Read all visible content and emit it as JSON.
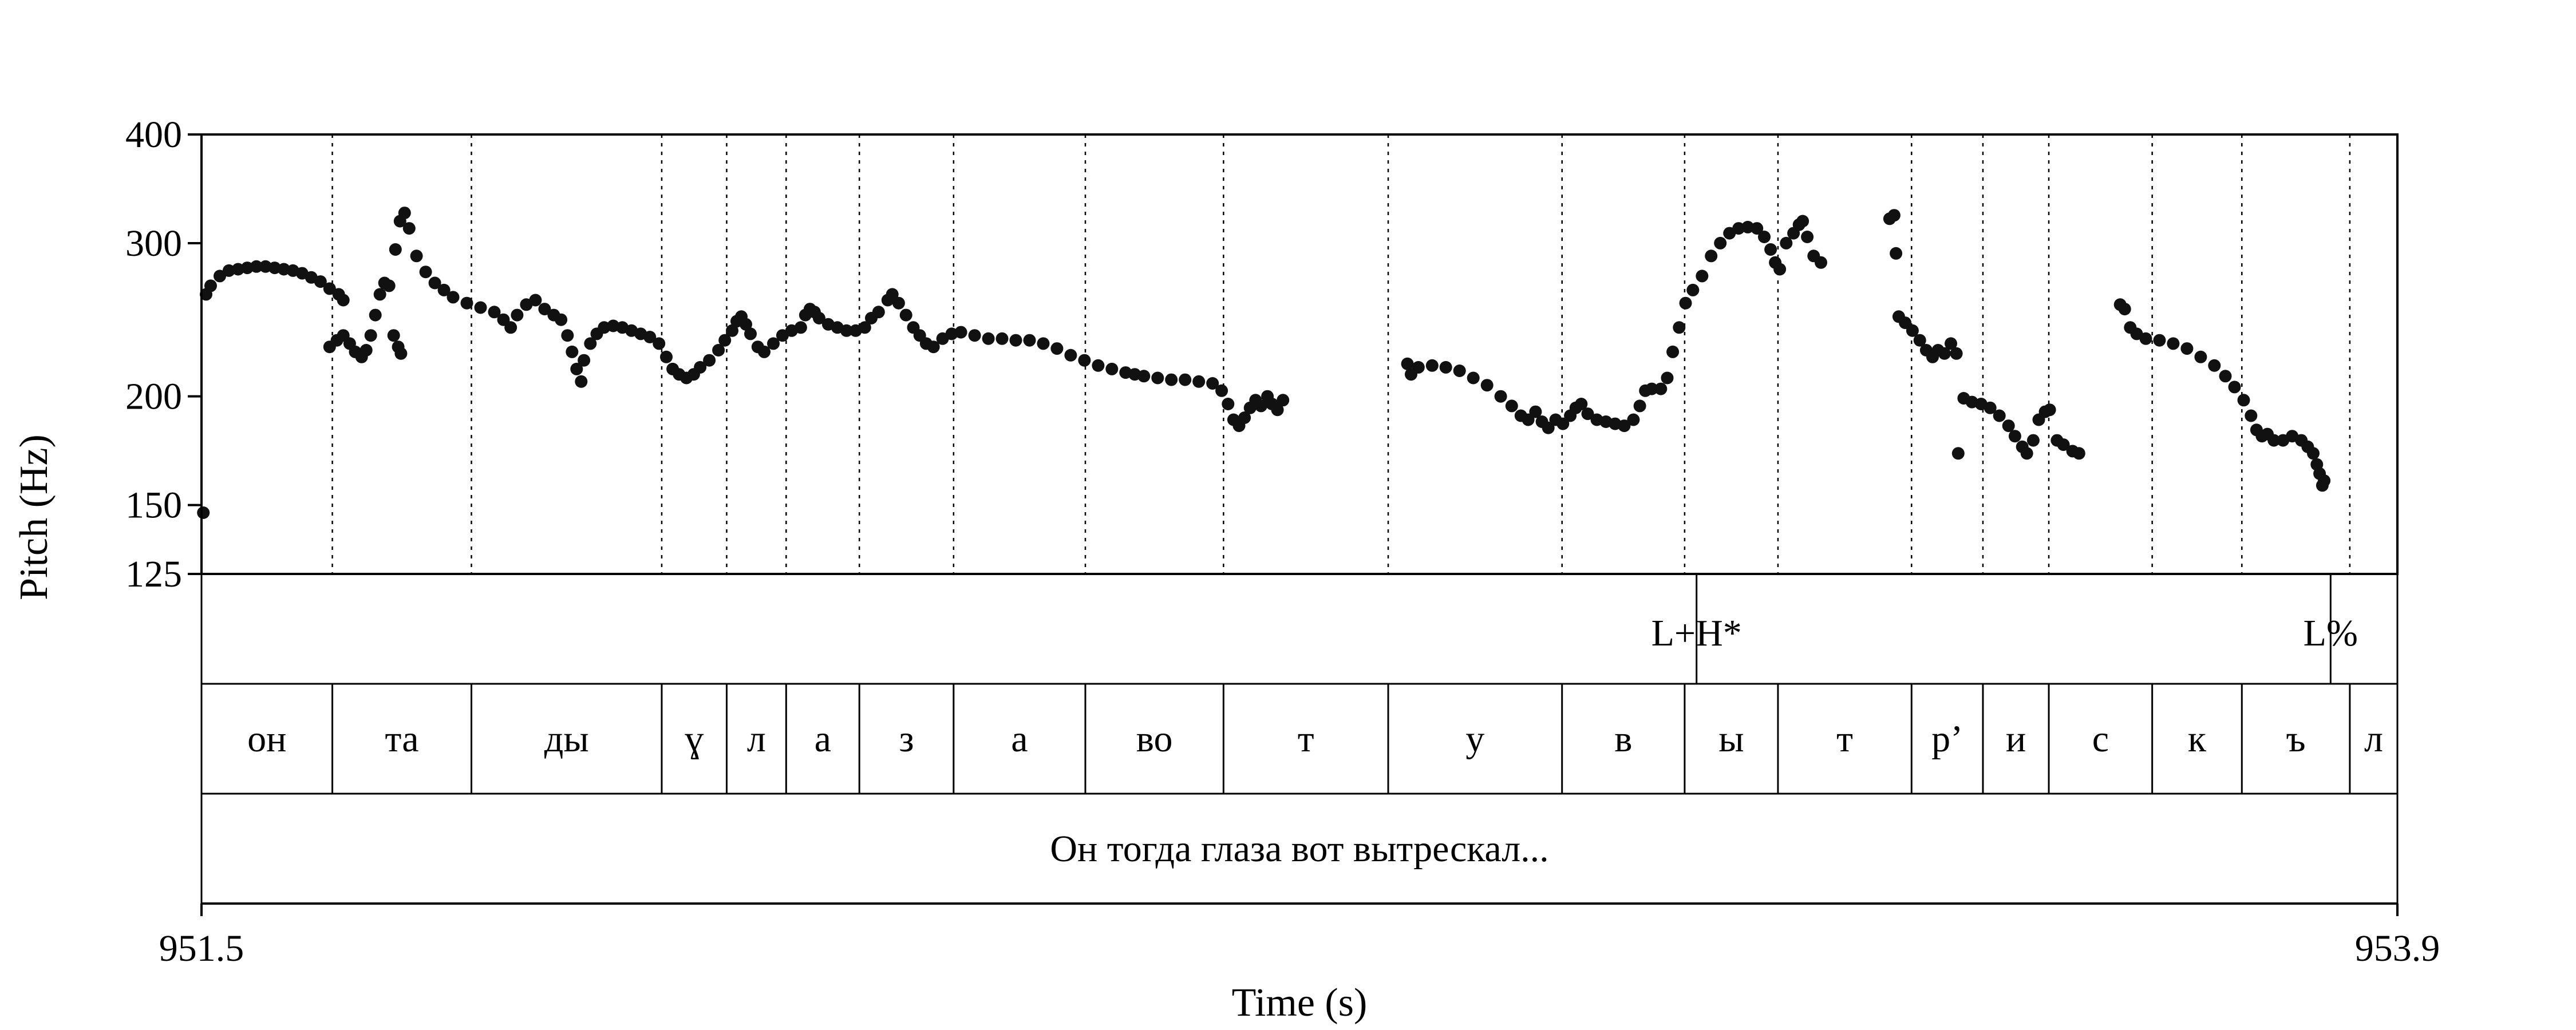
{
  "chart_data": {
    "type": "scatter",
    "title": "",
    "xlabel": "Time (s)",
    "ylabel": "Pitch (Hz)",
    "xlim": [
      951.5,
      953.9
    ],
    "ylim": [
      125,
      400
    ],
    "y_scale": "log",
    "x_tick_labels": [
      "951.5",
      "953.9"
    ],
    "y_tick_labels": [
      "125",
      "150",
      "200",
      "300",
      "400"
    ],
    "y_ticks": [
      125,
      150,
      200,
      300,
      400
    ],
    "grid": false,
    "series": [
      {
        "points": [
          [
            951.502,
            147
          ],
          [
            951.505,
            262
          ],
          [
            951.51,
            268
          ],
          [
            951.52,
            275
          ],
          [
            951.53,
            279
          ],
          [
            951.54,
            280
          ],
          [
            951.55,
            281
          ],
          [
            951.56,
            282
          ],
          [
            951.57,
            282
          ],
          [
            951.58,
            281
          ],
          [
            951.59,
            280
          ],
          [
            951.6,
            279
          ],
          [
            951.61,
            277
          ],
          [
            951.62,
            274
          ],
          [
            951.63,
            271
          ],
          [
            951.64,
            266
          ],
          [
            951.65,
            262
          ],
          [
            951.655,
            258
          ],
          [
            951.64,
            228
          ],
          [
            951.648,
            232
          ],
          [
            951.655,
            235
          ],
          [
            951.662,
            230
          ],
          [
            951.668,
            225
          ],
          [
            951.675,
            222
          ],
          [
            951.68,
            226
          ],
          [
            951.685,
            235
          ],
          [
            951.69,
            248
          ],
          [
            951.695,
            262
          ],
          [
            951.7,
            270
          ],
          [
            951.705,
            268
          ],
          [
            951.71,
            235
          ],
          [
            951.715,
            228
          ],
          [
            951.718,
            224
          ],
          [
            951.712,
            295
          ],
          [
            951.717,
            318
          ],
          [
            951.722,
            325
          ],
          [
            951.727,
            312
          ],
          [
            951.735,
            290
          ],
          [
            951.745,
            278
          ],
          [
            951.755,
            270
          ],
          [
            951.765,
            265
          ],
          [
            951.775,
            260
          ],
          [
            951.79,
            256
          ],
          [
            951.805,
            253
          ],
          [
            951.82,
            250
          ],
          [
            951.83,
            245
          ],
          [
            951.838,
            240
          ],
          [
            951.845,
            248
          ],
          [
            951.855,
            255
          ],
          [
            951.865,
            258
          ],
          [
            951.875,
            252
          ],
          [
            951.885,
            248
          ],
          [
            951.893,
            245
          ],
          [
            951.9,
            235
          ],
          [
            951.905,
            225
          ],
          [
            951.91,
            215
          ],
          [
            951.915,
            208
          ],
          [
            951.918,
            220
          ],
          [
            951.925,
            230
          ],
          [
            951.932,
            236
          ],
          [
            951.94,
            240
          ],
          [
            951.95,
            241
          ],
          [
            951.96,
            240
          ],
          [
            951.97,
            238
          ],
          [
            951.98,
            236
          ],
          [
            951.99,
            234
          ],
          [
            952.0,
            230
          ],
          [
            952.008,
            222
          ],
          [
            952.015,
            215
          ],
          [
            952.022,
            212
          ],
          [
            952.03,
            210
          ],
          [
            952.038,
            212
          ],
          [
            952.045,
            216
          ],
          [
            952.055,
            220
          ],
          [
            952.065,
            226
          ],
          [
            952.072,
            232
          ],
          [
            952.08,
            238
          ],
          [
            952.085,
            244
          ],
          [
            952.09,
            247
          ],
          [
            952.095,
            242
          ],
          [
            952.1,
            236
          ],
          [
            952.108,
            228
          ],
          [
            952.115,
            225
          ],
          [
            952.125,
            230
          ],
          [
            952.135,
            235
          ],
          [
            952.145,
            238
          ],
          [
            952.155,
            240
          ],
          [
            952.16,
            248
          ],
          [
            952.165,
            252
          ],
          [
            952.17,
            250
          ],
          [
            952.175,
            246
          ],
          [
            952.185,
            242
          ],
          [
            952.195,
            240
          ],
          [
            952.205,
            238
          ],
          [
            952.215,
            238
          ],
          [
            952.225,
            240
          ],
          [
            952.232,
            246
          ],
          [
            952.24,
            250
          ],
          [
            952.25,
            258
          ],
          [
            952.255,
            262
          ],
          [
            952.262,
            256
          ],
          [
            952.27,
            248
          ],
          [
            952.278,
            240
          ],
          [
            952.285,
            235
          ],
          [
            952.292,
            230
          ],
          [
            952.3,
            228
          ],
          [
            952.31,
            233
          ],
          [
            952.32,
            236
          ],
          [
            952.33,
            237
          ],
          [
            952.345,
            235
          ],
          [
            952.36,
            233
          ],
          [
            952.375,
            233
          ],
          [
            952.39,
            232
          ],
          [
            952.405,
            232
          ],
          [
            952.42,
            230
          ],
          [
            952.435,
            227
          ],
          [
            952.45,
            223
          ],
          [
            952.465,
            220
          ],
          [
            952.48,
            217
          ],
          [
            952.495,
            215
          ],
          [
            952.51,
            213
          ],
          [
            952.52,
            212
          ],
          [
            952.53,
            211
          ],
          [
            952.545,
            210
          ],
          [
            952.56,
            209
          ],
          [
            952.575,
            209
          ],
          [
            952.59,
            208
          ],
          [
            952.605,
            207
          ],
          [
            952.615,
            203
          ],
          [
            952.622,
            196
          ],
          [
            952.628,
            188
          ],
          [
            952.634,
            185
          ],
          [
            952.64,
            189
          ],
          [
            952.646,
            194
          ],
          [
            952.652,
            198
          ],
          [
            952.658,
            195
          ],
          [
            952.665,
            200
          ],
          [
            952.67,
            196
          ],
          [
            952.676,
            193
          ],
          [
            952.682,
            198
          ],
          [
            952.818,
            218
          ],
          [
            952.822,
            212
          ],
          [
            952.83,
            216
          ],
          [
            952.845,
            217
          ],
          [
            952.86,
            216
          ],
          [
            952.875,
            214
          ],
          [
            952.89,
            210
          ],
          [
            952.905,
            206
          ],
          [
            952.92,
            200
          ],
          [
            952.932,
            195
          ],
          [
            952.942,
            190
          ],
          [
            952.95,
            188
          ],
          [
            952.958,
            192
          ],
          [
            952.965,
            187
          ],
          [
            952.972,
            184
          ],
          [
            952.98,
            188
          ],
          [
            952.988,
            186
          ],
          [
            952.996,
            190
          ],
          [
            953.002,
            194
          ],
          [
            953.008,
            196
          ],
          [
            953.015,
            191
          ],
          [
            953.025,
            188
          ],
          [
            953.035,
            187
          ],
          [
            953.045,
            186
          ],
          [
            953.055,
            185
          ],
          [
            953.065,
            188
          ],
          [
            953.072,
            195
          ],
          [
            953.078,
            203
          ],
          [
            953.085,
            204
          ],
          [
            953.095,
            204
          ],
          [
            953.102,
            210
          ],
          [
            953.108,
            225
          ],
          [
            953.115,
            240
          ],
          [
            953.122,
            256
          ],
          [
            953.13,
            265
          ],
          [
            953.14,
            275
          ],
          [
            953.15,
            290
          ],
          [
            953.16,
            300
          ],
          [
            953.17,
            308
          ],
          [
            953.18,
            312
          ],
          [
            953.19,
            313
          ],
          [
            953.2,
            312
          ],
          [
            953.208,
            305
          ],
          [
            953.215,
            295
          ],
          [
            953.22,
            285
          ],
          [
            953.225,
            280
          ],
          [
            953.232,
            300
          ],
          [
            953.24,
            308
          ],
          [
            953.246,
            315
          ],
          [
            953.25,
            318
          ],
          [
            953.255,
            305
          ],
          [
            953.262,
            290
          ],
          [
            953.27,
            285
          ],
          [
            953.345,
            320
          ],
          [
            953.35,
            323
          ],
          [
            953.352,
            292
          ],
          [
            953.355,
            247
          ],
          [
            953.362,
            243
          ],
          [
            953.37,
            238
          ],
          [
            953.378,
            232
          ],
          [
            953.385,
            226
          ],
          [
            953.392,
            222
          ],
          [
            953.398,
            226
          ],
          [
            953.405,
            224
          ],
          [
            953.412,
            230
          ],
          [
            953.418,
            224
          ],
          [
            953.42,
            172
          ],
          [
            953.426,
            199
          ],
          [
            953.435,
            197
          ],
          [
            953.445,
            196
          ],
          [
            953.455,
            194
          ],
          [
            953.465,
            190
          ],
          [
            953.475,
            185
          ],
          [
            953.482,
            180
          ],
          [
            953.49,
            175
          ],
          [
            953.495,
            172
          ],
          [
            953.502,
            178
          ],
          [
            953.508,
            188
          ],
          [
            953.515,
            192
          ],
          [
            953.52,
            193
          ],
          [
            953.528,
            178
          ],
          [
            953.535,
            176
          ],
          [
            953.545,
            173
          ],
          [
            953.552,
            172
          ],
          [
            953.597,
            255
          ],
          [
            953.602,
            252
          ],
          [
            953.608,
            240
          ],
          [
            953.615,
            236
          ],
          [
            953.625,
            233
          ],
          [
            953.64,
            232
          ],
          [
            953.655,
            230
          ],
          [
            953.67,
            227
          ],
          [
            953.685,
            222
          ],
          [
            953.7,
            217
          ],
          [
            953.712,
            211
          ],
          [
            953.722,
            205
          ],
          [
            953.732,
            198
          ],
          [
            953.74,
            190
          ],
          [
            953.746,
            183
          ],
          [
            953.752,
            180
          ],
          [
            953.758,
            181
          ],
          [
            953.765,
            178
          ],
          [
            953.775,
            178
          ],
          [
            953.785,
            180
          ],
          [
            953.795,
            178
          ],
          [
            953.802,
            175
          ],
          [
            953.808,
            172
          ],
          [
            953.812,
            167
          ],
          [
            953.815,
            163
          ],
          [
            953.818,
            158
          ],
          [
            953.82,
            160
          ]
        ]
      }
    ],
    "tier_tones": [
      {
        "label": "L+H*",
        "time": 953.134
      },
      {
        "label": "L%",
        "time": 953.827
      }
    ],
    "tier_segments": [
      {
        "label": "он",
        "start": 951.5,
        "end": 951.643
      },
      {
        "label": "та",
        "start": 951.643,
        "end": 951.795
      },
      {
        "label": "ды",
        "start": 951.795,
        "end": 952.003
      },
      {
        "label": "ɣ",
        "start": 952.003,
        "end": 952.074
      },
      {
        "label": "л",
        "start": 952.074,
        "end": 952.139
      },
      {
        "label": "а",
        "start": 952.139,
        "end": 952.219
      },
      {
        "label": "з",
        "start": 952.219,
        "end": 952.322
      },
      {
        "label": "а",
        "start": 952.322,
        "end": 952.466
      },
      {
        "label": "во",
        "start": 952.466,
        "end": 952.617
      },
      {
        "label": "т",
        "start": 952.617,
        "end": 952.797
      },
      {
        "label": "у",
        "start": 952.797,
        "end": 952.987
      },
      {
        "label": "в",
        "start": 952.987,
        "end": 953.121
      },
      {
        "label": "ы",
        "start": 953.121,
        "end": 953.223
      },
      {
        "label": "т",
        "start": 953.223,
        "end": 953.369
      },
      {
        "label": "р’",
        "start": 953.369,
        "end": 953.447
      },
      {
        "label": "и",
        "start": 953.447,
        "end": 953.519
      },
      {
        "label": "с",
        "start": 953.519,
        "end": 953.632
      },
      {
        "label": "к",
        "start": 953.632,
        "end": 953.73
      },
      {
        "label": "ъ",
        "start": 953.73,
        "end": 953.848
      },
      {
        "label": "л",
        "start": 953.848,
        "end": 953.9
      }
    ],
    "utterance": "Он тогда глаза вот вытрескал..."
  }
}
